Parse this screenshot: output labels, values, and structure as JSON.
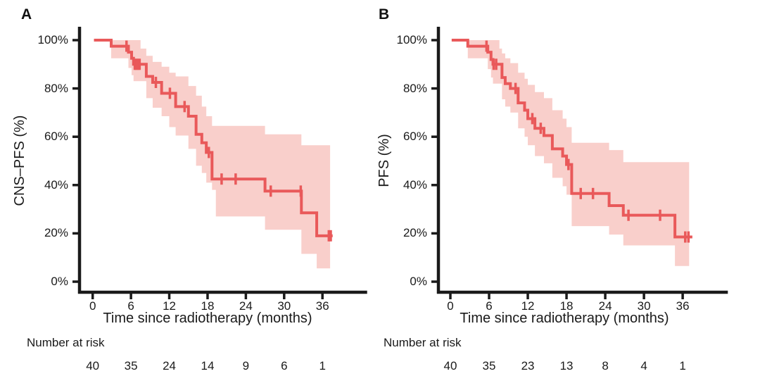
{
  "figure": {
    "background": "#ffffff",
    "text_color": "#1a1a1a",
    "axis_color": "#1a1a1a",
    "curve_color": "#e9595a",
    "band_color": "#f9cfcb"
  },
  "chart_data": [
    {
      "type": "line",
      "subtype": "kaplan-meier-step",
      "panel_label": "A",
      "ylabel": "CNS–PFS (%)",
      "xlabel": "Time since radiotherapy (months)",
      "x_ticks": [
        0,
        6,
        12,
        18,
        24,
        30,
        36
      ],
      "y_ticks": [
        [
          100,
          "100%"
        ],
        [
          80,
          "80%"
        ],
        [
          60,
          "60%"
        ],
        [
          40,
          "40%"
        ],
        [
          20,
          "20%"
        ],
        [
          0,
          "0%"
        ]
      ],
      "xlim": [
        0,
        43
      ],
      "ylim": [
        0,
        100
      ],
      "grid": false,
      "legend": false,
      "risk_table": {
        "label": "Number at risk",
        "times": [
          0,
          6,
          12,
          18,
          24,
          30,
          36
        ],
        "values": [
          40,
          35,
          24,
          14,
          9,
          6,
          1
        ]
      },
      "series": [
        {
          "name": "CNS-PFS",
          "steps": [
            [
              0,
              100
            ],
            [
              2.9,
              97.5
            ],
            [
              5.6,
              95
            ],
            [
              6.1,
              92.5
            ],
            [
              6.4,
              90
            ],
            [
              8.4,
              85
            ],
            [
              9.4,
              82.5
            ],
            [
              10.8,
              78
            ],
            [
              13.0,
              72.5
            ],
            [
              15.0,
              68.5
            ],
            [
              16.2,
              61
            ],
            [
              17.1,
              57.5
            ],
            [
              17.8,
              53.5
            ],
            [
              18.7,
              42.5
            ],
            [
              27.0,
              37.5
            ],
            [
              32.7,
              28.5
            ],
            [
              35.1,
              19
            ]
          ],
          "end_time": 37.6,
          "censor_marks": [
            [
              5.3,
              97.5
            ],
            [
              6.6,
              90
            ],
            [
              6.85,
              90
            ],
            [
              7.1,
              90
            ],
            [
              7.35,
              90
            ],
            [
              9.9,
              82.5
            ],
            [
              12.1,
              78
            ],
            [
              14.4,
              72.5
            ],
            [
              18.2,
              53.5
            ],
            [
              20.2,
              42.5
            ],
            [
              22.4,
              42.5
            ],
            [
              27.9,
              37.5
            ],
            [
              32.6,
              37.5
            ],
            [
              37.0,
              19
            ],
            [
              37.3,
              19
            ]
          ],
          "ci_band": [
            [
              2.9,
              92.5,
              100
            ],
            [
              5.6,
              88.5,
              100
            ],
            [
              6.1,
              85.5,
              100
            ],
            [
              6.4,
              83,
              100
            ],
            [
              7.5,
              83,
              96.5
            ],
            [
              8.4,
              76,
              93.5
            ],
            [
              9.4,
              72,
              91
            ],
            [
              10.8,
              68.5,
              89
            ],
            [
              12.0,
              64,
              86.5
            ],
            [
              13.0,
              60.5,
              85
            ],
            [
              15.0,
              55,
              81
            ],
            [
              16.2,
              48,
              77
            ],
            [
              17.1,
              45,
              72.5
            ],
            [
              17.8,
              41,
              68.5
            ],
            [
              18.7,
              38,
              64.5
            ],
            [
              19.3,
              27,
              64.5
            ],
            [
              27.0,
              21.5,
              61
            ],
            [
              32.7,
              11.5,
              56.5
            ],
            [
              35.1,
              5.5,
              56.5
            ]
          ],
          "ci_end": 37.2
        }
      ]
    },
    {
      "type": "line",
      "subtype": "kaplan-meier-step",
      "panel_label": "B",
      "ylabel": "PFS (%)",
      "xlabel": "Time since radiotherapy (months)",
      "x_ticks": [
        0,
        6,
        12,
        18,
        24,
        30,
        36
      ],
      "y_ticks": [
        [
          100,
          "100%"
        ],
        [
          80,
          "80%"
        ],
        [
          60,
          "60%"
        ],
        [
          40,
          "40%"
        ],
        [
          20,
          "20%"
        ],
        [
          0,
          "0%"
        ]
      ],
      "xlim": [
        0,
        43
      ],
      "ylim": [
        0,
        100
      ],
      "grid": false,
      "legend": false,
      "risk_table": {
        "label": "Number at risk",
        "times": [
          0,
          6,
          12,
          18,
          24,
          30,
          36
        ],
        "values": [
          40,
          35,
          23,
          13,
          8,
          4,
          1
        ]
      },
      "series": [
        {
          "name": "PFS",
          "steps": [
            [
              0,
              100
            ],
            [
              2.7,
              97.5
            ],
            [
              5.8,
              95
            ],
            [
              6.3,
              92
            ],
            [
              6.6,
              90
            ],
            [
              8.0,
              84.5
            ],
            [
              8.5,
              82
            ],
            [
              9.3,
              80
            ],
            [
              10.5,
              74
            ],
            [
              11.5,
              71
            ],
            [
              12.0,
              67.5
            ],
            [
              13.1,
              63.5
            ],
            [
              14.5,
              60.5
            ],
            [
              15.8,
              55
            ],
            [
              17.4,
              52
            ],
            [
              18.0,
              48.5
            ],
            [
              18.8,
              36.5
            ],
            [
              24.6,
              31.5
            ],
            [
              26.8,
              27.5
            ],
            [
              34.8,
              18.5
            ]
          ],
          "end_time": 37.5,
          "censor_marks": [
            [
              5.6,
              97.5
            ],
            [
              6.7,
              90
            ],
            [
              7.1,
              90
            ],
            [
              10.1,
              80
            ],
            [
              12.7,
              67.5
            ],
            [
              14.0,
              63.5
            ],
            [
              18.3,
              48.5
            ],
            [
              20.2,
              36.5
            ],
            [
              22.1,
              36.5
            ],
            [
              27.6,
              27.5
            ],
            [
              32.5,
              27.5
            ],
            [
              36.4,
              18.5
            ],
            [
              36.9,
              18.5
            ]
          ],
          "ci_band": [
            [
              2.7,
              92.5,
              100
            ],
            [
              5.8,
              88,
              100
            ],
            [
              6.3,
              84.5,
              100
            ],
            [
              6.6,
              82,
              100
            ],
            [
              7.6,
              82,
              96.5
            ],
            [
              8.0,
              75.5,
              94.5
            ],
            [
              8.5,
              72.5,
              92.5
            ],
            [
              9.3,
              70,
              90.5
            ],
            [
              10.5,
              63.5,
              86.5
            ],
            [
              11.5,
              60,
              84
            ],
            [
              12.0,
              56.5,
              81.5
            ],
            [
              13.1,
              52,
              78.5
            ],
            [
              14.5,
              49,
              76
            ],
            [
              15.8,
              43,
              71
            ],
            [
              17.4,
              39.5,
              67.5
            ],
            [
              18.0,
              36,
              64
            ],
            [
              18.8,
              23,
              57.5
            ],
            [
              24.6,
              19.5,
              54.5
            ],
            [
              26.8,
              15,
              49.5
            ],
            [
              34.8,
              6.5,
              49.5
            ]
          ],
          "ci_end": 37.0
        }
      ]
    }
  ]
}
